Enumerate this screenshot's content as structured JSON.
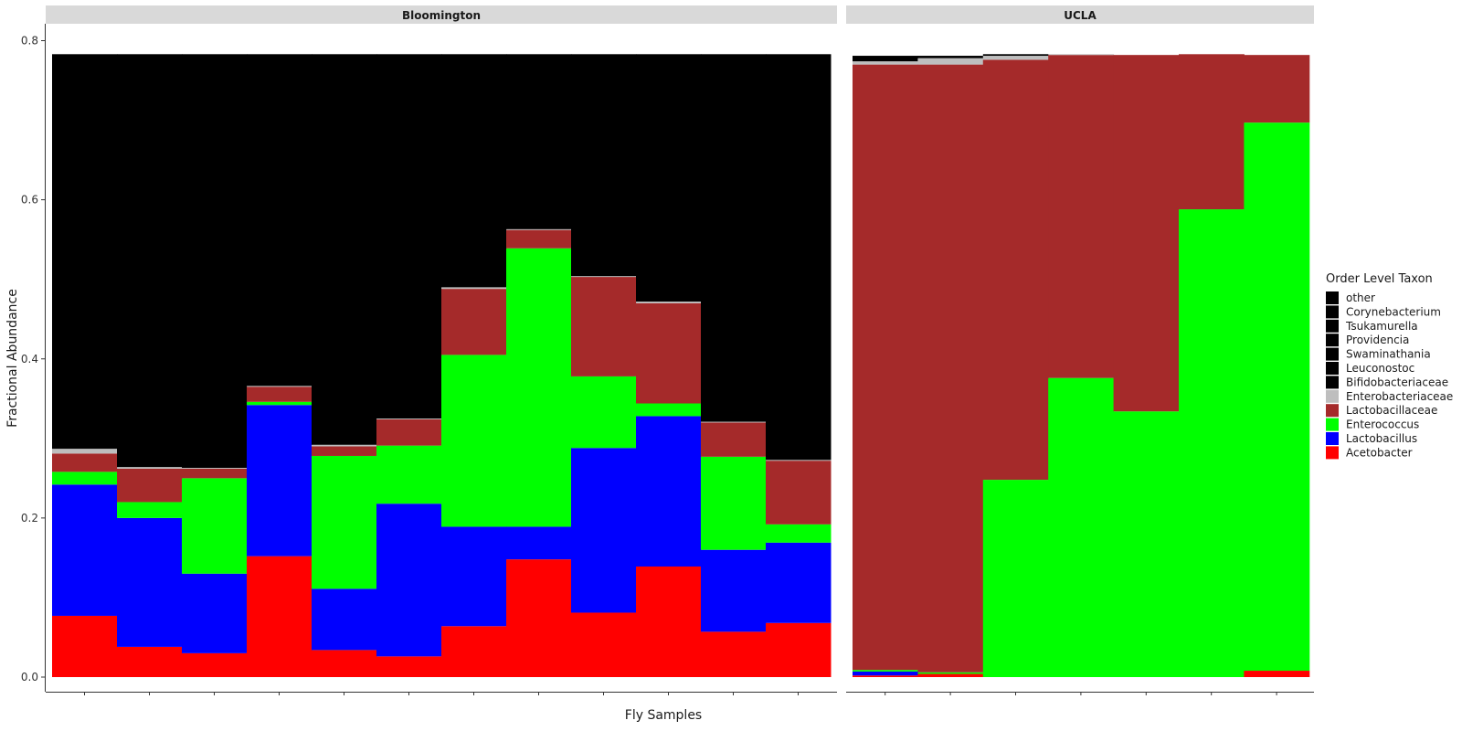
{
  "chart_data": {
    "type": "bar",
    "stacked": true,
    "xlabel": "Fly Samples",
    "ylabel": "Fractional Abundance",
    "ylim": [
      0,
      0.82
    ],
    "yticks": [
      "0.0",
      "0.2",
      "0.4",
      "0.6",
      "0.8"
    ],
    "ytick_values": [
      0,
      0.2,
      0.4,
      0.6,
      0.8
    ],
    "grid": false,
    "legend": {
      "title": "Order Level Taxon",
      "placement": "right",
      "items": [
        {
          "name": "other",
          "color": "#000000"
        },
        {
          "name": "Corynebacterium",
          "color": "#000000"
        },
        {
          "name": "Tsukamurella",
          "color": "#000000"
        },
        {
          "name": "Providencia",
          "color": "#000000"
        },
        {
          "name": "Swaminathania",
          "color": "#000000"
        },
        {
          "name": "Leuconostoc",
          "color": "#000000"
        },
        {
          "name": "Bifidobacteriaceae",
          "color": "#000000"
        },
        {
          "name": "Enterobacteriaceae",
          "color": "#bebebe"
        },
        {
          "name": "Lactobacillaceae",
          "color": "#a52a2a"
        },
        {
          "name": "Enterococcus",
          "color": "#00ff00"
        },
        {
          "name": "Lactobacillus",
          "color": "#0000ff"
        },
        {
          "name": "Acetobacter",
          "color": "#ff0000"
        }
      ]
    },
    "stack_order": [
      "Acetobacter",
      "Lactobacillus",
      "Enterococcus",
      "Lactobacillaceae",
      "Enterobacteriaceae",
      "other"
    ],
    "panels": [
      {
        "name": "Bloomington",
        "samples": [
          {
            "Acetobacter": 0.077,
            "Lactobacillus": 0.165,
            "Enterococcus": 0.016,
            "Lactobacillaceae": 0.023,
            "Enterobacteriaceae": 0.006,
            "other": 0.496
          },
          {
            "Acetobacter": 0.038,
            "Lactobacillus": 0.162,
            "Enterococcus": 0.02,
            "Lactobacillaceae": 0.042,
            "Enterobacteriaceae": 0.002,
            "other": 0.519
          },
          {
            "Acetobacter": 0.03,
            "Lactobacillus": 0.1,
            "Enterococcus": 0.12,
            "Lactobacillaceae": 0.012,
            "Enterobacteriaceae": 0.001,
            "other": 0.52
          },
          {
            "Acetobacter": 0.152,
            "Lactobacillus": 0.19,
            "Enterococcus": 0.004,
            "Lactobacillaceae": 0.019,
            "Enterobacteriaceae": 0.001,
            "other": 0.417
          },
          {
            "Acetobacter": 0.034,
            "Lactobacillus": 0.077,
            "Enterococcus": 0.167,
            "Lactobacillaceae": 0.012,
            "Enterobacteriaceae": 0.002,
            "other": 0.491
          },
          {
            "Acetobacter": 0.026,
            "Lactobacillus": 0.192,
            "Enterococcus": 0.073,
            "Lactobacillaceae": 0.033,
            "Enterobacteriaceae": 0.001,
            "other": 0.458
          },
          {
            "Acetobacter": 0.064,
            "Lactobacillus": 0.125,
            "Enterococcus": 0.216,
            "Lactobacillaceae": 0.083,
            "Enterobacteriaceae": 0.002,
            "other": 0.293
          },
          {
            "Acetobacter": 0.148,
            "Lactobacillus": 0.041,
            "Enterococcus": 0.35,
            "Lactobacillaceae": 0.023,
            "Enterobacteriaceae": 0.001,
            "other": 0.22
          },
          {
            "Acetobacter": 0.081,
            "Lactobacillus": 0.207,
            "Enterococcus": 0.09,
            "Lactobacillaceae": 0.125,
            "Enterobacteriaceae": 0.001,
            "other": 0.279
          },
          {
            "Acetobacter": 0.139,
            "Lactobacillus": 0.189,
            "Enterococcus": 0.016,
            "Lactobacillaceae": 0.126,
            "Enterobacteriaceae": 0.002,
            "other": 0.311
          },
          {
            "Acetobacter": 0.057,
            "Lactobacillus": 0.103,
            "Enterococcus": 0.117,
            "Lactobacillaceae": 0.043,
            "Enterobacteriaceae": 0.001,
            "other": 0.462
          },
          {
            "Acetobacter": 0.068,
            "Lactobacillus": 0.101,
            "Enterococcus": 0.023,
            "Lactobacillaceae": 0.08,
            "Enterobacteriaceae": 0.001,
            "other": 0.51
          }
        ]
      },
      {
        "name": "UCLA",
        "samples": [
          {
            "Acetobacter": 0.002,
            "Lactobacillus": 0.005,
            "Enterococcus": 0.002,
            "Lactobacillaceae": 0.761,
            "Enterobacteriaceae": 0.004,
            "other": 0.007
          },
          {
            "Acetobacter": 0.004,
            "Lactobacillus": 0.0,
            "Enterococcus": 0.002,
            "Lactobacillaceae": 0.764,
            "Enterobacteriaceae": 0.008,
            "other": 0.003
          },
          {
            "Acetobacter": 0.0,
            "Lactobacillus": 0.0,
            "Enterococcus": 0.248,
            "Lactobacillaceae": 0.528,
            "Enterobacteriaceae": 0.005,
            "other": 0.002
          },
          {
            "Acetobacter": 0.0,
            "Lactobacillus": 0.0,
            "Enterococcus": 0.376,
            "Lactobacillaceae": 0.406,
            "Enterobacteriaceae": 0.001,
            "other": 0.0
          },
          {
            "Acetobacter": 0.0,
            "Lactobacillus": 0.0,
            "Enterococcus": 0.334,
            "Lactobacillaceae": 0.448,
            "Enterobacteriaceae": 0.0,
            "other": 0.0
          },
          {
            "Acetobacter": 0.0,
            "Lactobacillus": 0.0,
            "Enterococcus": 0.588,
            "Lactobacillaceae": 0.195,
            "Enterobacteriaceae": 0.0,
            "other": 0.0
          },
          {
            "Acetobacter": 0.008,
            "Lactobacillus": 0.0,
            "Enterococcus": 0.689,
            "Lactobacillaceae": 0.085,
            "Enterobacteriaceae": 0.0,
            "other": 0.0
          }
        ]
      }
    ]
  }
}
